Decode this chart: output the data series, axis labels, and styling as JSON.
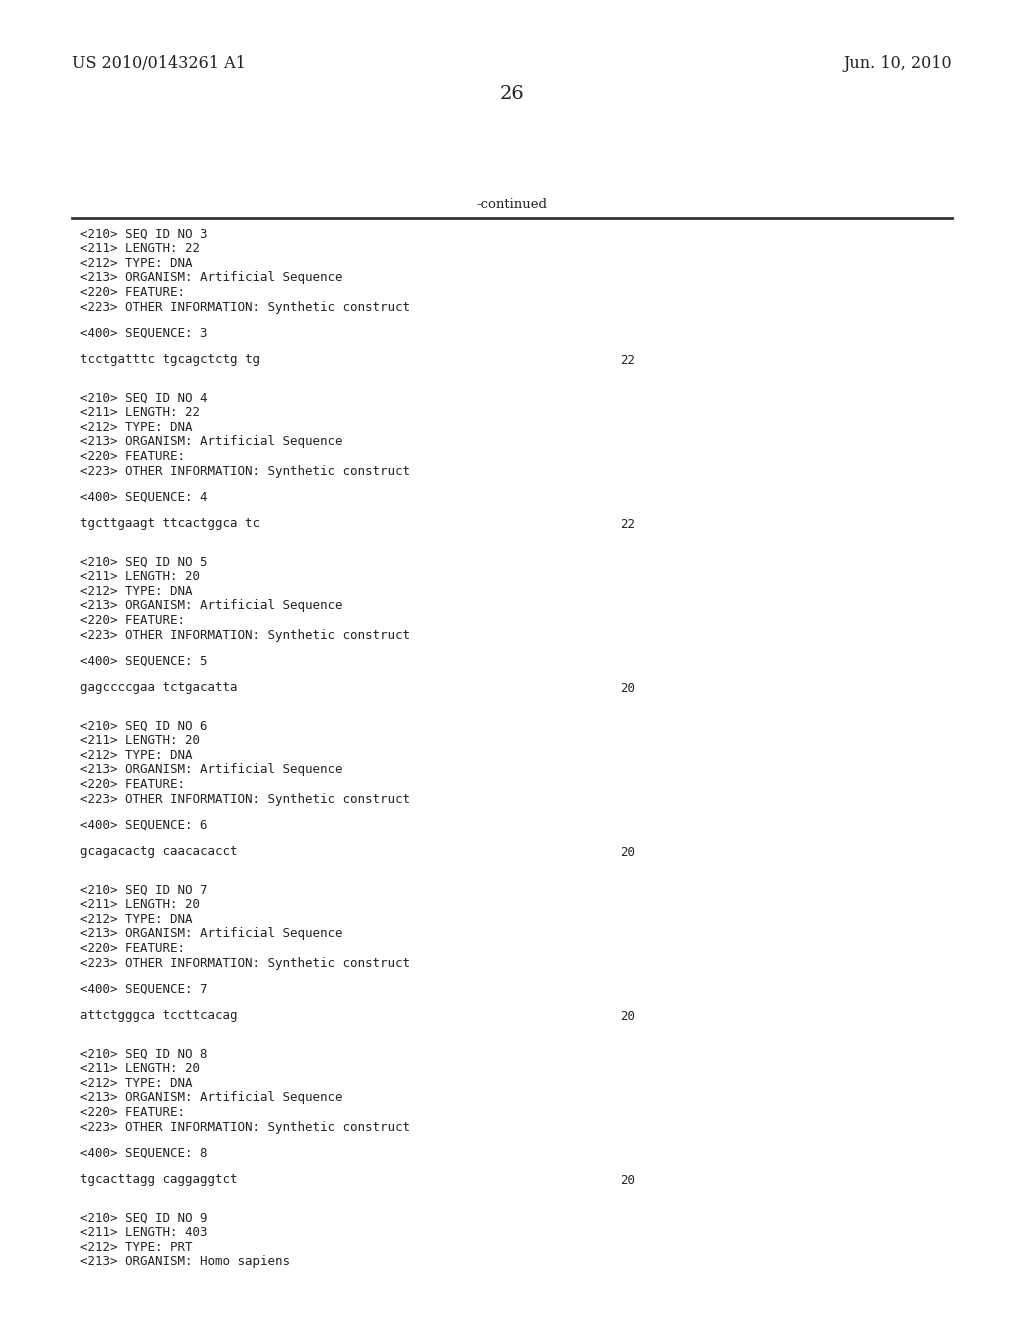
{
  "background_color": "#ffffff",
  "header_left": "US 2010/0143261 A1",
  "header_right": "Jun. 10, 2010",
  "page_number": "26",
  "continued_text": "-continued",
  "content": [
    {
      "type": "meta",
      "lines": [
        "<210> SEQ ID NO 3",
        "<211> LENGTH: 22",
        "<212> TYPE: DNA",
        "<213> ORGANISM: Artificial Sequence",
        "<220> FEATURE:",
        "<223> OTHER INFORMATION: Synthetic construct"
      ]
    },
    {
      "type": "blank"
    },
    {
      "type": "seq_label",
      "text": "<400> SEQUENCE: 3"
    },
    {
      "type": "blank"
    },
    {
      "type": "sequence",
      "seq": "tcctgatttc tgcagctctg tg",
      "num": "22"
    },
    {
      "type": "blank"
    },
    {
      "type": "blank"
    },
    {
      "type": "meta",
      "lines": [
        "<210> SEQ ID NO 4",
        "<211> LENGTH: 22",
        "<212> TYPE: DNA",
        "<213> ORGANISM: Artificial Sequence",
        "<220> FEATURE:",
        "<223> OTHER INFORMATION: Synthetic construct"
      ]
    },
    {
      "type": "blank"
    },
    {
      "type": "seq_label",
      "text": "<400> SEQUENCE: 4"
    },
    {
      "type": "blank"
    },
    {
      "type": "sequence",
      "seq": "tgcttgaagt ttcactggca tc",
      "num": "22"
    },
    {
      "type": "blank"
    },
    {
      "type": "blank"
    },
    {
      "type": "meta",
      "lines": [
        "<210> SEQ ID NO 5",
        "<211> LENGTH: 20",
        "<212> TYPE: DNA",
        "<213> ORGANISM: Artificial Sequence",
        "<220> FEATURE:",
        "<223> OTHER INFORMATION: Synthetic construct"
      ]
    },
    {
      "type": "blank"
    },
    {
      "type": "seq_label",
      "text": "<400> SEQUENCE: 5"
    },
    {
      "type": "blank"
    },
    {
      "type": "sequence",
      "seq": "gagccccgaa tctgacatta",
      "num": "20"
    },
    {
      "type": "blank"
    },
    {
      "type": "blank"
    },
    {
      "type": "meta",
      "lines": [
        "<210> SEQ ID NO 6",
        "<211> LENGTH: 20",
        "<212> TYPE: DNA",
        "<213> ORGANISM: Artificial Sequence",
        "<220> FEATURE:",
        "<223> OTHER INFORMATION: Synthetic construct"
      ]
    },
    {
      "type": "blank"
    },
    {
      "type": "seq_label",
      "text": "<400> SEQUENCE: 6"
    },
    {
      "type": "blank"
    },
    {
      "type": "sequence",
      "seq": "gcagacactg caacacacct",
      "num": "20"
    },
    {
      "type": "blank"
    },
    {
      "type": "blank"
    },
    {
      "type": "meta",
      "lines": [
        "<210> SEQ ID NO 7",
        "<211> LENGTH: 20",
        "<212> TYPE: DNA",
        "<213> ORGANISM: Artificial Sequence",
        "<220> FEATURE:",
        "<223> OTHER INFORMATION: Synthetic construct"
      ]
    },
    {
      "type": "blank"
    },
    {
      "type": "seq_label",
      "text": "<400> SEQUENCE: 7"
    },
    {
      "type": "blank"
    },
    {
      "type": "sequence",
      "seq": "attctgggca tccttcacag",
      "num": "20"
    },
    {
      "type": "blank"
    },
    {
      "type": "blank"
    },
    {
      "type": "meta",
      "lines": [
        "<210> SEQ ID NO 8",
        "<211> LENGTH: 20",
        "<212> TYPE: DNA",
        "<213> ORGANISM: Artificial Sequence",
        "<220> FEATURE:",
        "<223> OTHER INFORMATION: Synthetic construct"
      ]
    },
    {
      "type": "blank"
    },
    {
      "type": "seq_label",
      "text": "<400> SEQUENCE: 8"
    },
    {
      "type": "blank"
    },
    {
      "type": "sequence",
      "seq": "tgcacttagg caggaggtct",
      "num": "20"
    },
    {
      "type": "blank"
    },
    {
      "type": "blank"
    },
    {
      "type": "meta",
      "lines": [
        "<210> SEQ ID NO 9",
        "<211> LENGTH: 403",
        "<212> TYPE: PRT",
        "<213> ORGANISM: Homo sapiens"
      ]
    }
  ],
  "mono_fontsize": 9.0,
  "header_fontsize": 11.5,
  "page_num_fontsize": 14
}
